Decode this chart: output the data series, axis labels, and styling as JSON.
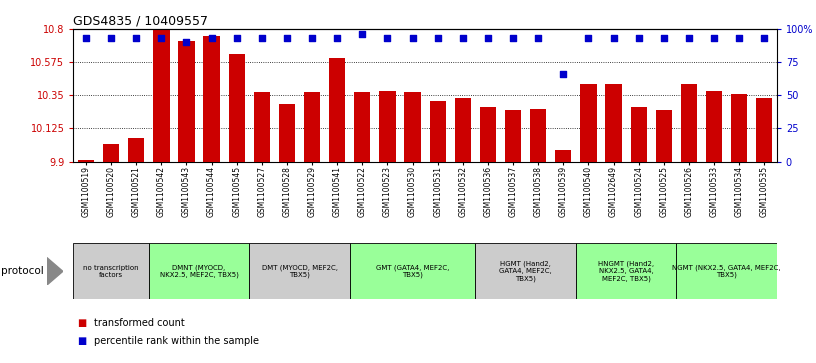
{
  "title": "GDS4835 / 10409557",
  "samples": [
    "GSM1100519",
    "GSM1100520",
    "GSM1100521",
    "GSM1100542",
    "GSM1100543",
    "GSM1100544",
    "GSM1100545",
    "GSM1100527",
    "GSM1100528",
    "GSM1100529",
    "GSM1100541",
    "GSM1100522",
    "GSM1100523",
    "GSM1100530",
    "GSM1100531",
    "GSM1100532",
    "GSM1100536",
    "GSM1100537",
    "GSM1100538",
    "GSM1100539",
    "GSM1100540",
    "GSM1102649",
    "GSM1100524",
    "GSM1100525",
    "GSM1100526",
    "GSM1100533",
    "GSM1100534",
    "GSM1100535"
  ],
  "bar_values": [
    9.91,
    10.02,
    10.06,
    10.8,
    10.72,
    10.75,
    10.63,
    10.37,
    10.29,
    10.37,
    10.6,
    10.37,
    10.38,
    10.37,
    10.31,
    10.33,
    10.27,
    10.25,
    10.26,
    9.98,
    10.43,
    10.43,
    10.27,
    10.25,
    10.43,
    10.38,
    10.36,
    10.33
  ],
  "percentile_values": [
    93,
    93,
    93,
    93,
    90,
    93,
    93,
    93,
    93,
    93,
    93,
    96,
    93,
    93,
    93,
    93,
    93,
    93,
    93,
    66,
    93,
    93,
    93,
    93,
    93,
    93,
    93,
    93
  ],
  "ylim_left": [
    9.9,
    10.8
  ],
  "ylim_right": [
    0,
    100
  ],
  "yticks_left": [
    9.9,
    10.125,
    10.35,
    10.575,
    10.8
  ],
  "yticks_right": [
    0,
    25,
    50,
    75,
    100
  ],
  "bar_color": "#CC0000",
  "dot_color": "#0000CC",
  "protocol_groups": [
    {
      "label": "no transcription\nfactors",
      "start": 0,
      "end": 3,
      "color": "#CCCCCC"
    },
    {
      "label": "DMNT (MYOCD,\nNKX2.5, MEF2C, TBX5)",
      "start": 3,
      "end": 7,
      "color": "#99FF99"
    },
    {
      "label": "DMT (MYOCD, MEF2C,\nTBX5)",
      "start": 7,
      "end": 11,
      "color": "#CCCCCC"
    },
    {
      "label": "GMT (GATA4, MEF2C,\nTBX5)",
      "start": 11,
      "end": 16,
      "color": "#99FF99"
    },
    {
      "label": "HGMT (Hand2,\nGATA4, MEF2C,\nTBX5)",
      "start": 16,
      "end": 20,
      "color": "#CCCCCC"
    },
    {
      "label": "HNGMT (Hand2,\nNKX2.5, GATA4,\nMEF2C, TBX5)",
      "start": 20,
      "end": 24,
      "color": "#99FF99"
    },
    {
      "label": "NGMT (NKX2.5, GATA4, MEF2C,\nTBX5)",
      "start": 24,
      "end": 28,
      "color": "#99FF99"
    }
  ],
  "legend_items": [
    {
      "marker": "s",
      "color": "#CC0000",
      "label": "transformed count"
    },
    {
      "marker": "s",
      "color": "#0000CC",
      "label": "percentile rank within the sample"
    }
  ]
}
